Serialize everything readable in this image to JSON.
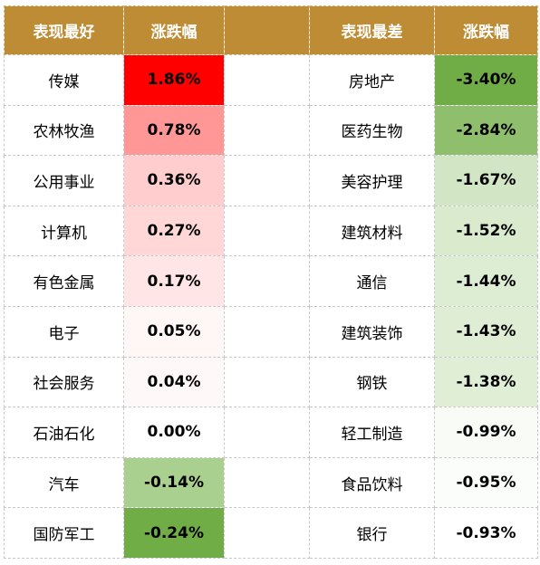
{
  "header": {
    "best_label": "表现最好",
    "change_label_left": "涨跌幅",
    "worst_label": "表现最差",
    "change_label_right": "涨跌幅"
  },
  "best": [
    {
      "name": "传媒",
      "change": "1.86%",
      "color": "#ff0000"
    },
    {
      "name": "农林牧渔",
      "change": "0.78%",
      "color": "#ff9797"
    },
    {
      "name": "公用事业",
      "change": "0.36%",
      "color": "#ffcdcd"
    },
    {
      "name": "计算机",
      "change": "0.27%",
      "color": "#ffd7d7"
    },
    {
      "name": "有色金属",
      "change": "0.17%",
      "color": "#ffe5e5"
    },
    {
      "name": "电子",
      "change": "0.05%",
      "color": "#fff6f6"
    },
    {
      "name": "社会服务",
      "change": "0.04%",
      "color": "#fff8f8"
    },
    {
      "name": "石油石化",
      "change": "0.00%",
      "color": "#ffffff"
    },
    {
      "name": "汽车",
      "change": "-0.14%",
      "color": "#a9d08e"
    },
    {
      "name": "国防军工",
      "change": "-0.24%",
      "color": "#70ad47"
    }
  ],
  "worst": [
    {
      "name": "房地产",
      "change": "-3.40%",
      "color": "#70ad47"
    },
    {
      "name": "医药生物",
      "change": "-2.84%",
      "color": "#8fbe6c"
    },
    {
      "name": "美容护理",
      "change": "-1.67%",
      "color": "#d2e6c5"
    },
    {
      "name": "建筑材料",
      "change": "-1.52%",
      "color": "#d9eacd"
    },
    {
      "name": "通信",
      "change": "-1.44%",
      "color": "#ddedd3"
    },
    {
      "name": "建筑装饰",
      "change": "-1.43%",
      "color": "#deedd4"
    },
    {
      "name": "钢铁",
      "change": "-1.38%",
      "color": "#e0eed6"
    },
    {
      "name": "轻工制造",
      "change": "-0.99%",
      "color": "#f8fbf6"
    },
    {
      "name": "食品饮料",
      "change": "-0.95%",
      "color": "#fbfdfa"
    },
    {
      "name": "银行",
      "change": "-0.93%",
      "color": "#ffffff"
    }
  ]
}
